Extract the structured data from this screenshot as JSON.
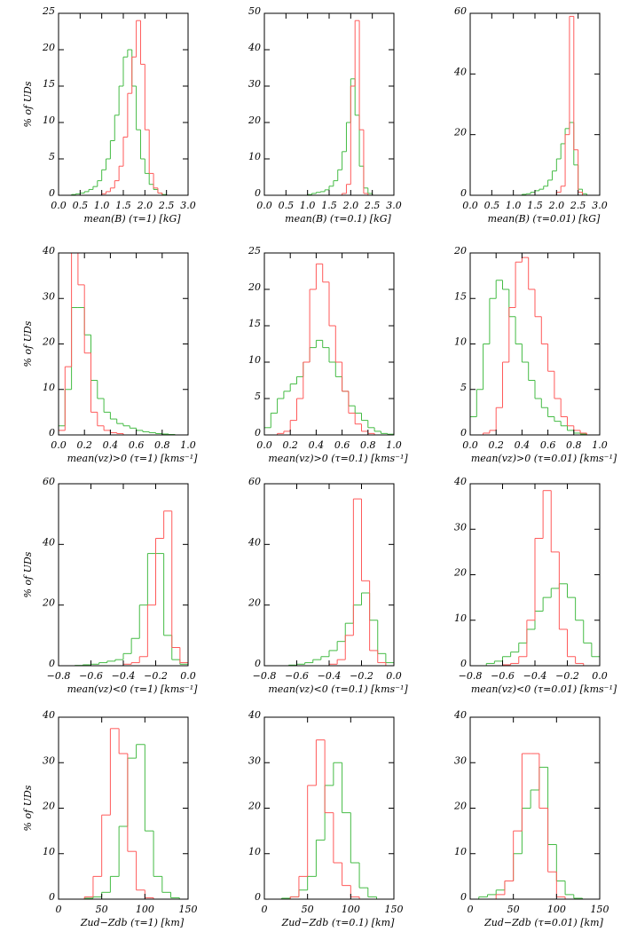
{
  "chart_data": [
    {
      "type": "histogram",
      "x_label": "mean(B)  (τ=1)  [kG]",
      "y_label": "% of UDs",
      "bins": [
        0.3,
        0.4,
        0.5,
        0.6,
        0.7,
        0.8,
        0.9,
        1.0,
        1.1,
        1.2,
        1.3,
        1.4,
        1.5,
        1.6,
        1.7,
        1.8,
        1.9,
        2.0,
        2.1,
        2.2,
        2.3,
        2.4,
        2.5
      ],
      "series": [
        {
          "color": "#44bb44",
          "values": [
            0.1,
            0.2,
            0.3,
            0.5,
            0.8,
            1.2,
            2,
            3.5,
            5,
            7.5,
            11,
            15,
            19,
            20,
            15,
            9,
            5,
            3,
            1.5,
            0.8,
            0.3,
            0.1
          ]
        },
        {
          "color": "#ff5a5a",
          "values": [
            0,
            0,
            0,
            0,
            0,
            0,
            0,
            0.2,
            0.5,
            1,
            2,
            4,
            8,
            14,
            19,
            24,
            18,
            9,
            3,
            1,
            0.3,
            0
          ]
        }
      ],
      "xlim": [
        0,
        3
      ],
      "xticks": [
        {
          "value": 0,
          "label": "0.0"
        },
        0.5,
        {
          "value": 1,
          "label": "1.0"
        },
        1.5,
        {
          "value": 2,
          "label": "2.0"
        },
        2.5,
        {
          "value": 3,
          "label": "3.0"
        }
      ],
      "ylim": [
        0,
        25
      ],
      "yticks": [
        0,
        5,
        10,
        15,
        20,
        25
      ]
    },
    {
      "type": "histogram",
      "x_label": "mean(B)  (τ=0.1)  [kG]",
      "bins": [
        1.0,
        1.1,
        1.2,
        1.3,
        1.4,
        1.5,
        1.6,
        1.7,
        1.8,
        1.9,
        2.0,
        2.1,
        2.2,
        2.3,
        2.4,
        2.5
      ],
      "series": [
        {
          "color": "#44bb44",
          "values": [
            0.2,
            0.5,
            0.8,
            1,
            1.5,
            2.5,
            4,
            7,
            12,
            20,
            32,
            22,
            8,
            2,
            0.5
          ]
        },
        {
          "color": "#ff5a5a",
          "values": [
            0,
            0,
            0,
            0,
            0,
            0,
            0,
            0,
            0.5,
            3,
            30,
            48,
            18,
            0.5,
            0
          ]
        }
      ],
      "xlim": [
        0,
        3
      ],
      "xticks": [
        {
          "value": 0,
          "label": "0.0"
        },
        0.5,
        {
          "value": 1,
          "label": "1.0"
        },
        1.5,
        {
          "value": 2,
          "label": "2.0"
        },
        2.5,
        {
          "value": 3,
          "label": "3.0"
        }
      ],
      "ylim": [
        0,
        50
      ],
      "yticks": [
        0,
        10,
        20,
        30,
        40,
        50
      ]
    },
    {
      "type": "histogram",
      "x_label": "mean(B)  (τ=0.01)  [kG]",
      "bins": [
        1.2,
        1.3,
        1.4,
        1.5,
        1.6,
        1.7,
        1.8,
        1.9,
        2.0,
        2.1,
        2.2,
        2.3,
        2.4,
        2.5,
        2.6,
        2.7,
        2.8
      ],
      "series": [
        {
          "color": "#44bb44",
          "values": [
            0.3,
            0.5,
            1,
            1.5,
            2,
            3,
            5,
            8,
            12,
            17,
            22,
            24,
            10,
            2,
            0.5,
            0
          ]
        },
        {
          "color": "#ff5a5a",
          "values": [
            0,
            0,
            0,
            0,
            0,
            0,
            0,
            0,
            1,
            3,
            20,
            59,
            15,
            1,
            0,
            0
          ]
        }
      ],
      "xlim": [
        0,
        3
      ],
      "xticks": [
        {
          "value": 0,
          "label": "0.0"
        },
        0.5,
        {
          "value": 1,
          "label": "1.0"
        },
        1.5,
        {
          "value": 2,
          "label": "2.0"
        },
        2.5,
        {
          "value": 3,
          "label": "3.0"
        }
      ],
      "ylim": [
        0,
        60
      ],
      "yticks": [
        0,
        20,
        40,
        60
      ]
    },
    {
      "type": "histogram",
      "x_label": "mean(vz)>0  (τ=1)  [kms⁻¹]",
      "y_label": "% of UDs",
      "bins": [
        0,
        0.05,
        0.1,
        0.15,
        0.2,
        0.25,
        0.3,
        0.35,
        0.4,
        0.45,
        0.5,
        0.55,
        0.6,
        0.65,
        0.7,
        0.75,
        0.8,
        0.85,
        0.9
      ],
      "series": [
        {
          "color": "#44bb44",
          "values": [
            2,
            10,
            28,
            28,
            22,
            12,
            8,
            5,
            3.5,
            2.5,
            2,
            1.5,
            1,
            0.7,
            0.5,
            0.3,
            0.2,
            0.1
          ]
        },
        {
          "color": "#ff5a5a",
          "values": [
            1,
            15,
            40,
            33,
            18,
            5,
            2,
            1,
            0.5,
            0.3,
            0,
            0,
            0,
            0,
            0,
            0,
            0,
            0
          ]
        }
      ],
      "xlim": [
        0,
        1
      ],
      "xticks": [
        {
          "value": 0,
          "label": "0.0"
        },
        0.2,
        0.4,
        0.6,
        0.8,
        {
          "value": 1,
          "label": "1.0"
        }
      ],
      "ylim": [
        0,
        40
      ],
      "yticks": [
        0,
        10,
        20,
        30,
        40
      ]
    },
    {
      "type": "histogram",
      "x_label": "mean(vz)>0  (τ=0.1)  [kms⁻¹]",
      "bins": [
        0,
        0.05,
        0.1,
        0.15,
        0.2,
        0.25,
        0.3,
        0.35,
        0.4,
        0.45,
        0.5,
        0.55,
        0.6,
        0.65,
        0.7,
        0.75,
        0.8,
        0.85,
        0.9,
        0.95,
        1.0
      ],
      "series": [
        {
          "color": "#44bb44",
          "values": [
            1,
            3,
            5,
            6,
            7,
            8,
            10,
            12,
            13,
            12,
            10,
            8,
            6,
            4,
            3,
            2,
            1,
            0.5,
            0.2,
            0.1
          ]
        },
        {
          "color": "#ff5a5a",
          "values": [
            0,
            0,
            0.2,
            0.5,
            2,
            5,
            10,
            20,
            23.5,
            21,
            15,
            10,
            6,
            3,
            1.5,
            0.5,
            0.2,
            0,
            0,
            0
          ]
        }
      ],
      "xlim": [
        0,
        1
      ],
      "xticks": [
        {
          "value": 0,
          "label": "0.0"
        },
        0.2,
        0.4,
        0.6,
        0.8,
        {
          "value": 1,
          "label": "1.0"
        }
      ],
      "ylim": [
        0,
        25
      ],
      "yticks": [
        0,
        5,
        10,
        15,
        20,
        25
      ]
    },
    {
      "type": "histogram",
      "x_label": "mean(vz)>0  (τ=0.01)  [kms⁻¹]",
      "bins": [
        0,
        0.05,
        0.1,
        0.15,
        0.2,
        0.25,
        0.3,
        0.35,
        0.4,
        0.45,
        0.5,
        0.55,
        0.6,
        0.65,
        0.7,
        0.75,
        0.8,
        0.85,
        0.9,
        0.95,
        1.0
      ],
      "series": [
        {
          "color": "#44bb44",
          "values": [
            2,
            5,
            10,
            15,
            17,
            16,
            13,
            10,
            8,
            6,
            4,
            3,
            2,
            1.5,
            1,
            0.5,
            0.2,
            0.1,
            0,
            0
          ]
        },
        {
          "color": "#ff5a5a",
          "values": [
            0,
            0,
            0.2,
            0.5,
            3,
            8,
            14,
            19,
            19.5,
            16,
            13,
            10,
            7,
            4,
            2,
            1,
            0.5,
            0.2,
            0,
            0
          ]
        }
      ],
      "xlim": [
        0,
        1
      ],
      "xticks": [
        {
          "value": 0,
          "label": "0.0"
        },
        0.2,
        0.4,
        0.6,
        0.8,
        {
          "value": 1,
          "label": "1.0"
        }
      ],
      "ylim": [
        0,
        20
      ],
      "yticks": [
        0,
        5,
        10,
        15,
        20
      ]
    },
    {
      "type": "histogram",
      "x_label": "mean(vz)<0  (τ=1)  [kms⁻¹]",
      "y_label": "% of UDs",
      "bins": [
        -0.7,
        -0.65,
        -0.6,
        -0.55,
        -0.5,
        -0.45,
        -0.4,
        -0.35,
        -0.3,
        -0.25,
        -0.2,
        -0.15,
        -0.1,
        -0.05,
        0
      ],
      "series": [
        {
          "color": "#44bb44",
          "values": [
            0.1,
            0.3,
            0.5,
            1,
            1.5,
            2,
            4,
            9,
            20,
            37,
            37,
            10,
            2,
            0.5
          ]
        },
        {
          "color": "#ff5a5a",
          "values": [
            0,
            0,
            0,
            0,
            0,
            0,
            0.5,
            1,
            3,
            20,
            42,
            51,
            6,
            1
          ]
        }
      ],
      "xlim": [
        -0.8,
        0
      ],
      "xticks": [
        {
          "value": -0.8,
          "label": "−0.8"
        },
        {
          "value": -0.6,
          "label": "−0.6"
        },
        {
          "value": -0.4,
          "label": "−0.4"
        },
        {
          "value": -0.2,
          "label": "−0.2"
        },
        {
          "value": 0,
          "label": "0.0"
        }
      ],
      "ylim": [
        0,
        60
      ],
      "yticks": [
        0,
        20,
        40,
        60
      ]
    },
    {
      "type": "histogram",
      "x_label": "mean(vz)<0  (τ=0.1)  [kms⁻¹]",
      "bins": [
        -0.7,
        -0.65,
        -0.6,
        -0.55,
        -0.5,
        -0.45,
        -0.4,
        -0.35,
        -0.3,
        -0.25,
        -0.2,
        -0.15,
        -0.1,
        -0.05,
        0
      ],
      "series": [
        {
          "color": "#44bb44",
          "values": [
            0,
            0.2,
            0.5,
            1,
            2,
            3,
            5,
            8,
            14,
            20,
            24,
            15,
            4,
            1
          ]
        },
        {
          "color": "#ff5a5a",
          "values": [
            0,
            0,
            0,
            0,
            0,
            0,
            0.5,
            2,
            10,
            55,
            28,
            5,
            1,
            0
          ]
        }
      ],
      "xlim": [
        -0.8,
        0
      ],
      "xticks": [
        {
          "value": -0.8,
          "label": "−0.8"
        },
        {
          "value": -0.6,
          "label": "−0.6"
        },
        {
          "value": -0.4,
          "label": "−0.4"
        },
        {
          "value": -0.2,
          "label": "−0.2"
        },
        {
          "value": 0,
          "label": "0.0"
        }
      ],
      "ylim": [
        0,
        60
      ],
      "yticks": [
        0,
        20,
        40,
        60
      ]
    },
    {
      "type": "histogram",
      "x_label": "mean(vz)<0  (τ=0.01)  [kms⁻¹]",
      "bins": [
        -0.7,
        -0.65,
        -0.6,
        -0.55,
        -0.5,
        -0.45,
        -0.4,
        -0.35,
        -0.3,
        -0.25,
        -0.2,
        -0.15,
        -0.1,
        -0.05,
        0
      ],
      "series": [
        {
          "color": "#44bb44",
          "values": [
            0.5,
            1,
            2,
            3,
            5,
            8,
            12,
            15,
            17,
            18,
            15,
            10,
            5,
            2
          ]
        },
        {
          "color": "#ff5a5a",
          "values": [
            0,
            0,
            0.2,
            0.5,
            2,
            10,
            28,
            38.5,
            25,
            8,
            2,
            0.5,
            0,
            0
          ]
        }
      ],
      "xlim": [
        -0.8,
        0
      ],
      "xticks": [
        {
          "value": -0.8,
          "label": "−0.8"
        },
        {
          "value": -0.6,
          "label": "−0.6"
        },
        {
          "value": -0.4,
          "label": "−0.4"
        },
        {
          "value": -0.2,
          "label": "−0.2"
        },
        {
          "value": 0,
          "label": "0.0"
        }
      ],
      "ylim": [
        0,
        40
      ],
      "yticks": [
        0,
        10,
        20,
        30,
        40
      ]
    },
    {
      "type": "histogram",
      "x_label": "Zud−Zdb  (τ=1)  [km]",
      "y_label": "% of UDs",
      "bins": [
        0,
        10,
        20,
        30,
        40,
        50,
        60,
        70,
        80,
        90,
        100,
        110,
        120,
        130,
        140,
        150
      ],
      "series": [
        {
          "color": "#44bb44",
          "values": [
            0,
            0,
            0,
            0.2,
            0.5,
            1.5,
            5,
            16,
            31,
            34,
            15,
            5,
            1.5,
            0.3,
            0
          ]
        },
        {
          "color": "#ff5a5a",
          "values": [
            0,
            0,
            0,
            0.5,
            5,
            18.5,
            37.5,
            32,
            10.5,
            2,
            0.3,
            0,
            0,
            0,
            0
          ]
        }
      ],
      "xlim": [
        0,
        150
      ],
      "xticks": [
        0,
        50,
        100,
        150
      ],
      "ylim": [
        0,
        40
      ],
      "yticks": [
        0,
        10,
        20,
        30,
        40
      ]
    },
    {
      "type": "histogram",
      "x_label": "Zud−Zdb  (τ=0.1)  [km]",
      "bins": [
        0,
        10,
        20,
        30,
        40,
        50,
        60,
        70,
        80,
        90,
        100,
        110,
        120,
        130,
        140,
        150
      ],
      "series": [
        {
          "color": "#44bb44",
          "values": [
            0,
            0,
            0.2,
            0.5,
            2,
            5,
            13,
            25,
            30,
            19,
            8,
            2.5,
            0.5,
            0,
            0
          ]
        },
        {
          "color": "#ff5a5a",
          "values": [
            0,
            0,
            0,
            0.5,
            5,
            25,
            35,
            19,
            8,
            3,
            0.5,
            0,
            0,
            0,
            0
          ]
        }
      ],
      "xlim": [
        0,
        150
      ],
      "xticks": [
        0,
        50,
        100,
        150
      ],
      "ylim": [
        0,
        40
      ],
      "yticks": [
        0,
        10,
        20,
        30,
        40
      ]
    },
    {
      "type": "histogram",
      "x_label": "Zud−Zdb  (τ=0.01)  [km]",
      "bins": [
        0,
        10,
        20,
        30,
        40,
        50,
        60,
        70,
        80,
        90,
        100,
        110,
        120,
        130,
        140,
        150
      ],
      "series": [
        {
          "color": "#44bb44",
          "values": [
            0,
            0.5,
            1,
            2,
            4,
            10,
            20,
            24,
            29,
            12,
            4,
            1,
            0.2,
            0,
            0
          ]
        },
        {
          "color": "#ff5a5a",
          "values": [
            0,
            0,
            0,
            1,
            4,
            15,
            32,
            32,
            20,
            6,
            0.5,
            0,
            0,
            0,
            0
          ]
        }
      ],
      "xlim": [
        0,
        150
      ],
      "xticks": [
        0,
        50,
        100,
        150
      ],
      "ylim": [
        0,
        40
      ],
      "yticks": [
        0,
        10,
        20,
        30,
        40
      ]
    }
  ]
}
